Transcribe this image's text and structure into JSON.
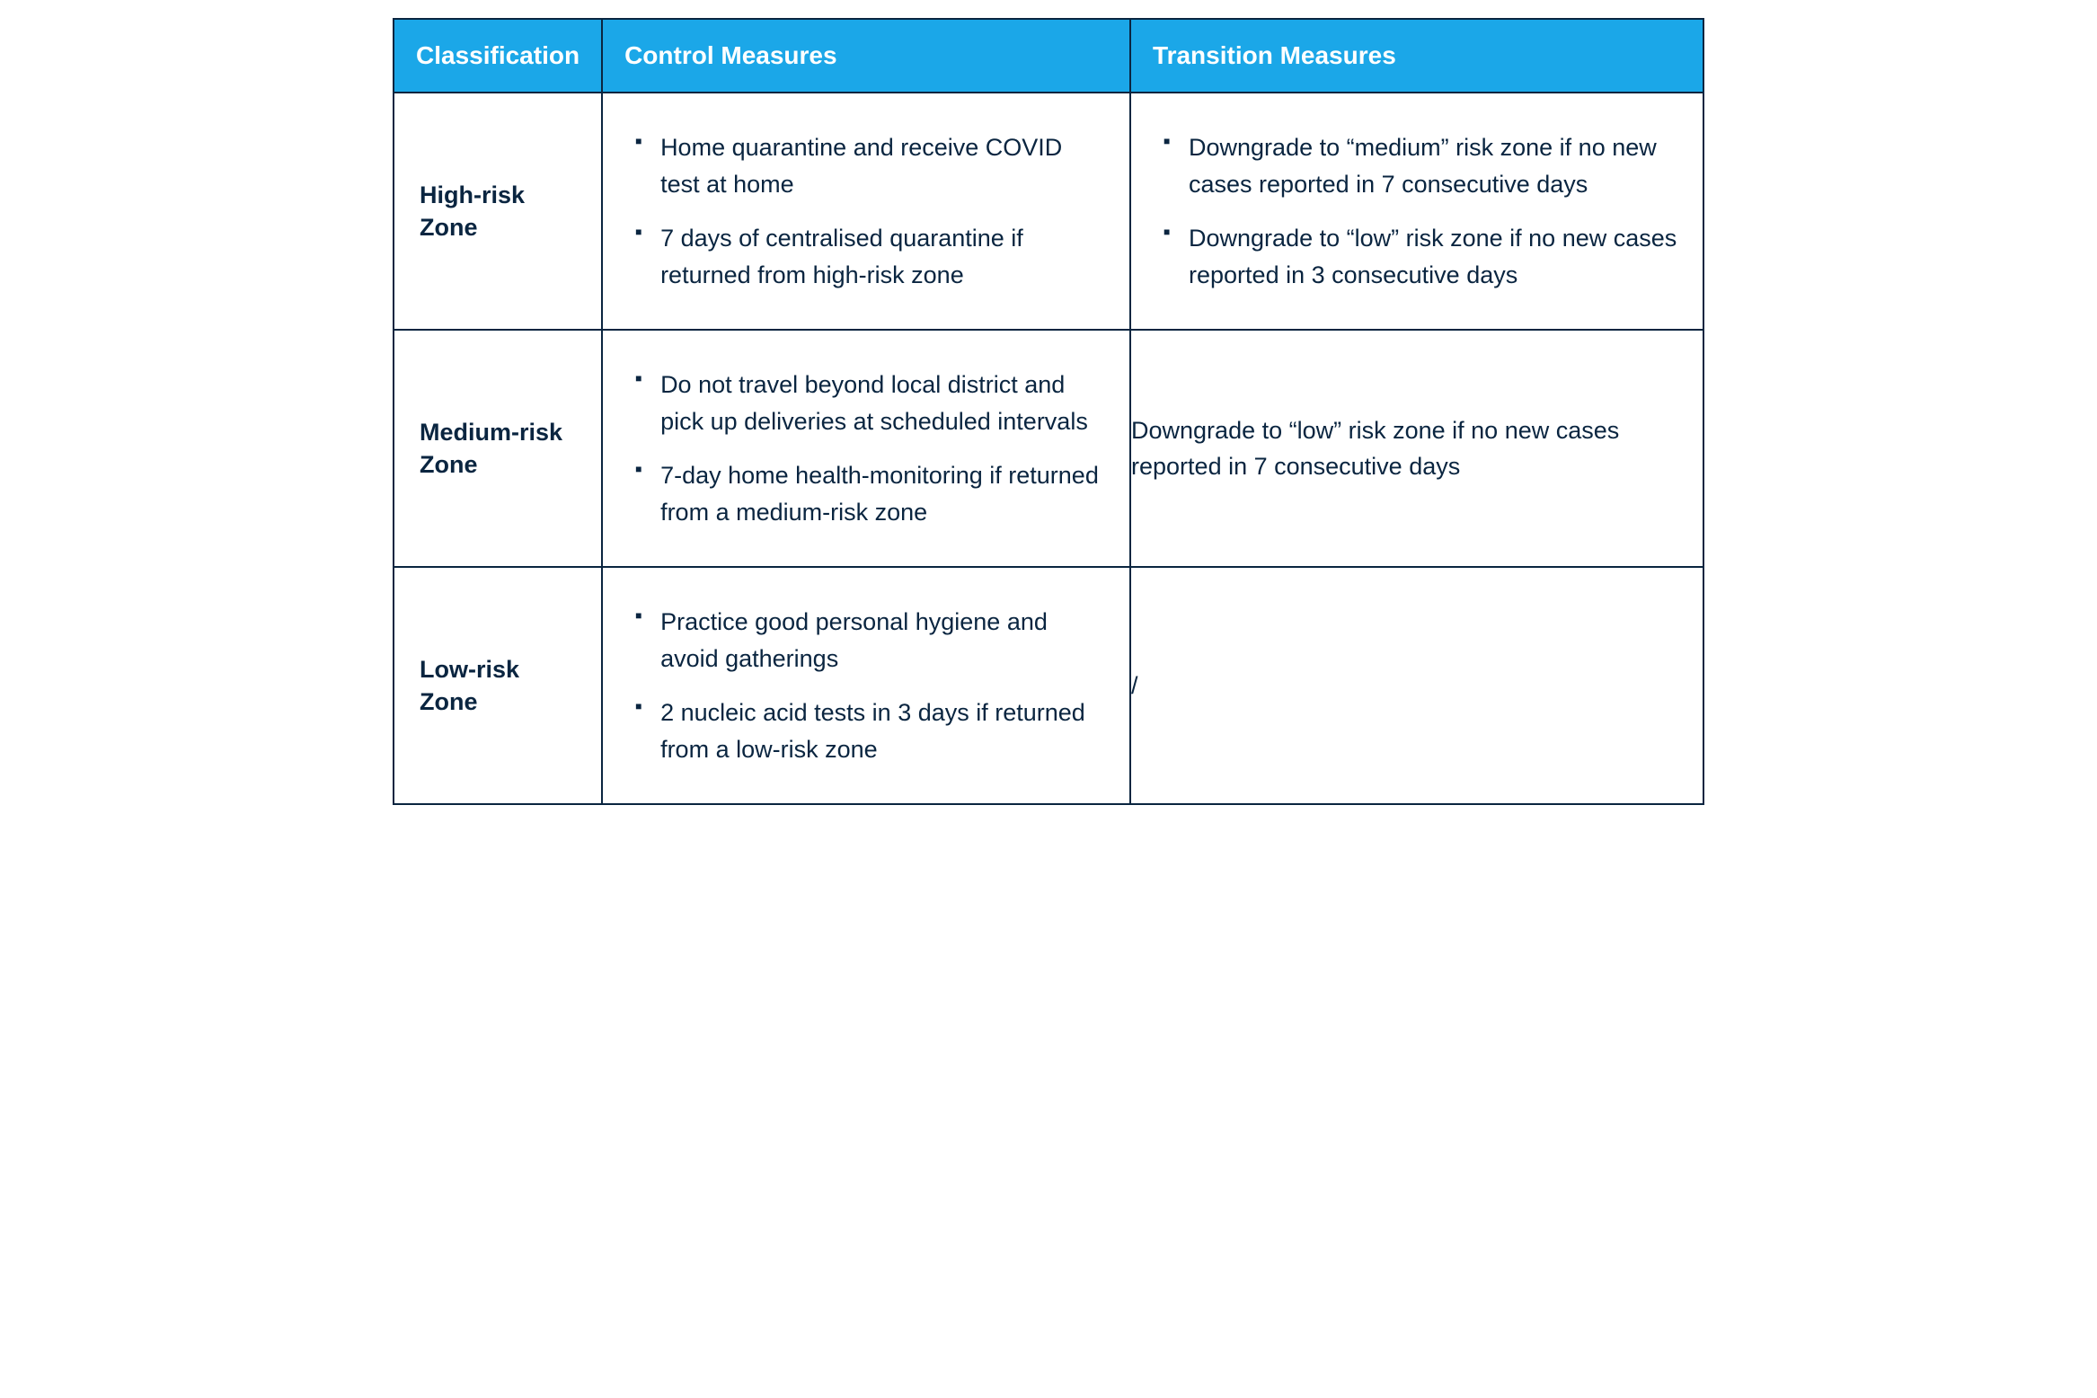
{
  "table": {
    "type": "table",
    "header_bg_color": "#1ba7e8",
    "header_text_color": "#ffffff",
    "border_color": "#0a2540",
    "text_color": "#0a2540",
    "background_color": "#ffffff",
    "header_fontsize": 28,
    "body_fontsize": 27,
    "columns": [
      {
        "label": "Classification",
        "width_pct": 14.5
      },
      {
        "label": "Control Measures",
        "width_pct": 41
      },
      {
        "label": "Transition Measures",
        "width_pct": 44.5
      }
    ],
    "rows": [
      {
        "classification": "High-risk Zone",
        "control_measures": [
          "Home quarantine and receive COVID test at home",
          "7 days of centralised quarantine if returned from high-risk zone"
        ],
        "transition_measures": [
          "Downgrade to “medium” risk zone if no new cases reported in 7 consecutive days",
          "Downgrade to “low” risk zone if no new cases reported in 3 consecutive days"
        ],
        "transition_is_list": true
      },
      {
        "classification": "Medium-risk Zone",
        "control_measures": [
          "Do not travel beyond local district and pick up deliveries at scheduled intervals",
          "7-day home health-monitoring if returned from a medium-risk zone"
        ],
        "transition_text": "Downgrade to “low” risk zone if no new cases reported in 7 consecutive days",
        "transition_is_list": false
      },
      {
        "classification": "Low-risk Zone",
        "control_measures": [
          "Practice good personal hygiene and avoid gatherings",
          "2 nucleic acid tests in 3 days if returned from a low-risk zone"
        ],
        "transition_text": "/",
        "transition_is_list": false
      }
    ]
  }
}
